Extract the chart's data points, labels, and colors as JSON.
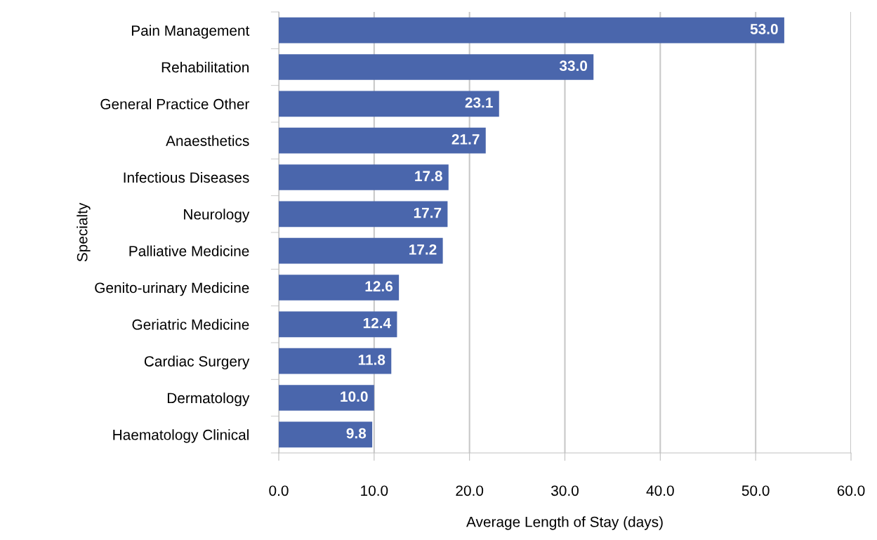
{
  "chart_data": {
    "type": "bar",
    "orientation": "horizontal",
    "categories": [
      "Pain Management",
      "Rehabilitation",
      "General Practice Other",
      "Anaesthetics",
      "Infectious Diseases",
      "Neurology",
      "Palliative Medicine",
      "Genito-urinary Medicine",
      "Geriatric Medicine",
      "Cardiac Surgery",
      "Dermatology",
      "Haematology Clinical"
    ],
    "values": [
      53.0,
      33.0,
      23.1,
      21.7,
      17.8,
      17.7,
      17.2,
      12.6,
      12.4,
      11.8,
      10.0,
      9.8
    ],
    "value_labels": [
      "53.0",
      "33.0",
      "23.1",
      "21.7",
      "17.8",
      "17.7",
      "17.2",
      "12.6",
      "12.4",
      "11.8",
      "10.0",
      "9.8"
    ],
    "color": "#4a66ac",
    "xlim": [
      0,
      60
    ],
    "xticks": [
      {
        "value": 0,
        "label": "0.0"
      },
      {
        "value": 10,
        "label": "10.0"
      },
      {
        "value": 20,
        "label": "20.0"
      },
      {
        "value": 30,
        "label": "30.0"
      },
      {
        "value": 40,
        "label": "40.0"
      },
      {
        "value": 50,
        "label": "50.0"
      },
      {
        "value": 60,
        "label": "60.0"
      }
    ],
    "xlabel": "Average Length of Stay (days)",
    "ylabel": "Specialty",
    "grid": "x",
    "legend": false
  }
}
